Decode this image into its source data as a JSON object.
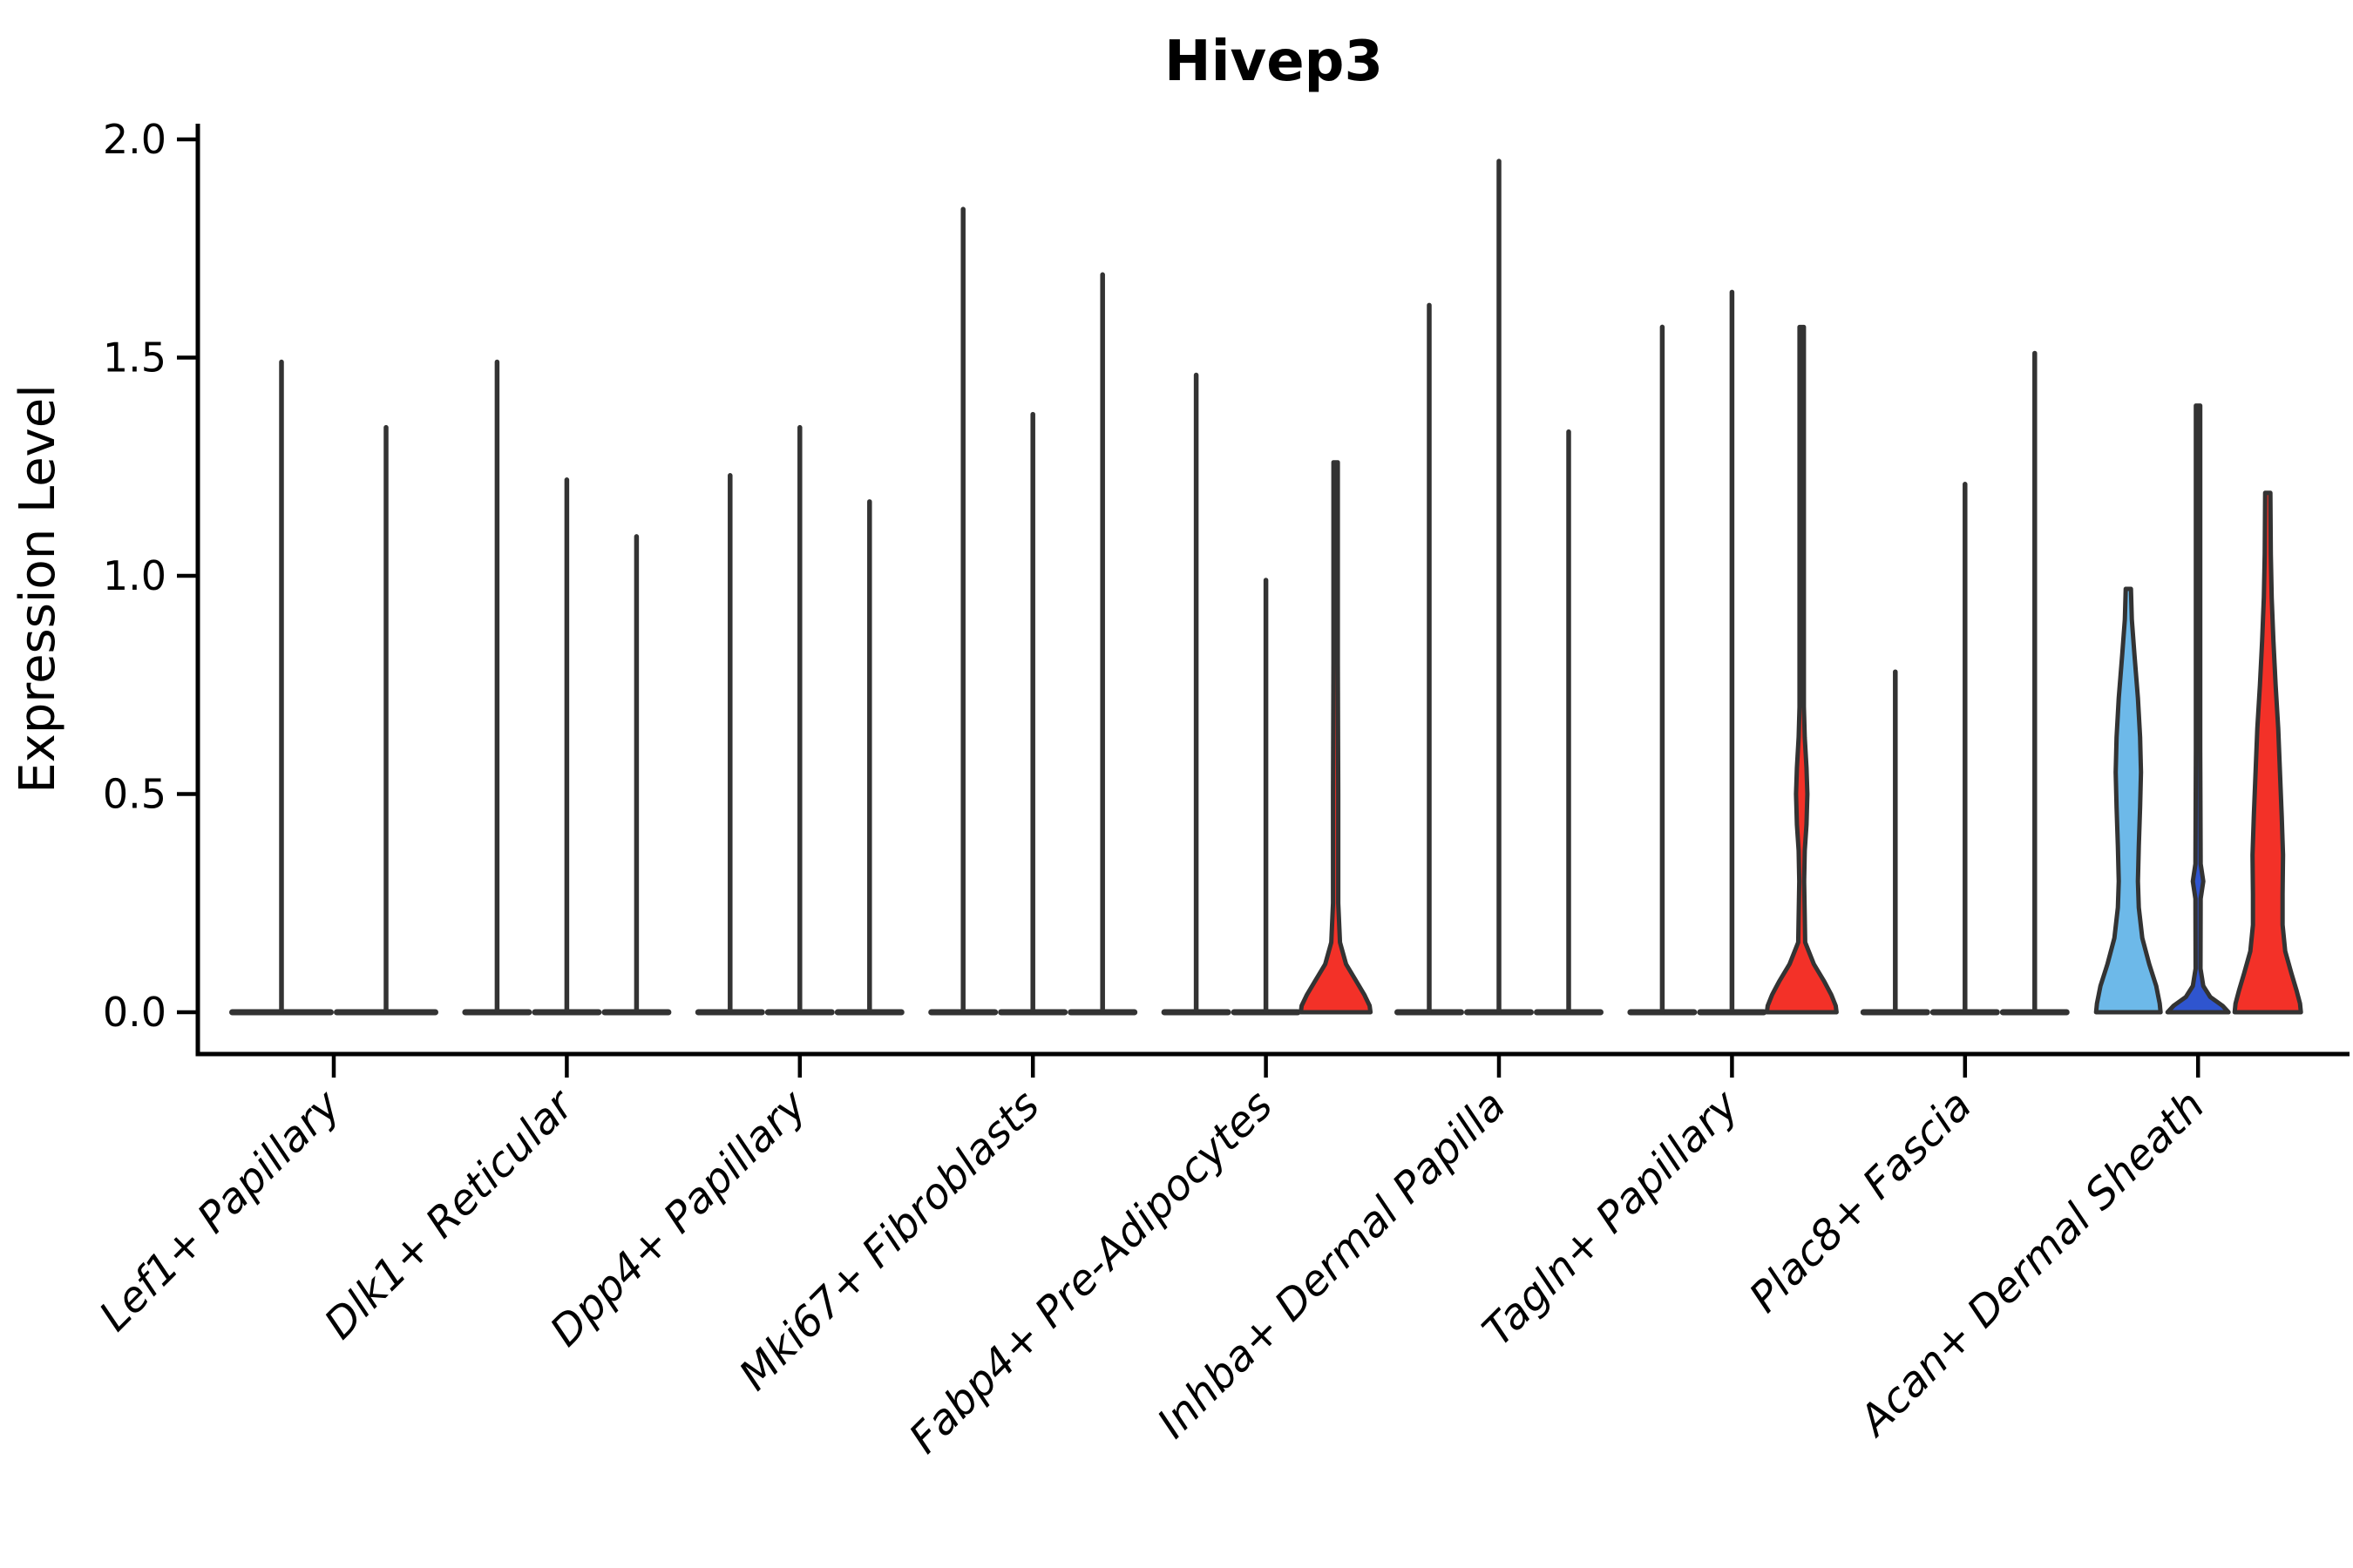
{
  "chart_data": {
    "type": "violin",
    "title": "Hivep3",
    "ylabel": "Expression Level",
    "xlabel": "",
    "ylim": [
      0.0,
      2.0
    ],
    "yticks": [
      0.0,
      0.5,
      1.0,
      1.5,
      2.0
    ],
    "ytick_labels": [
      "0.0",
      "0.5",
      "1.0",
      "1.5",
      "2.0"
    ],
    "grid": false,
    "legend": "none",
    "categories": [
      "Lef1+ Papillary",
      "Dlk1+ Reticular",
      "Dpp4+ Papillary",
      "Mki67+ Fibroblasts",
      "Fabp4+ Pre-Adipocytes",
      "Inhba+ Dermal Papilla",
      "Tagln+ Papillary",
      "Plac8+ Fascia",
      "Acan+ Dermal Sheath"
    ],
    "colors": {
      "spike": "#333333",
      "outline": "#333333",
      "axis": "#000000",
      "red": "#f33128",
      "skyblue": "#6db9e9",
      "blue": "#2f55cf",
      "background": "#ffffff"
    },
    "groups": [
      {
        "category": "Lef1+ Papillary",
        "violins": [
          {
            "max": 1.49,
            "style": "spike"
          },
          {
            "max": 1.34,
            "style": "spike"
          }
        ]
      },
      {
        "category": "Dlk1+ Reticular",
        "violins": [
          {
            "max": 1.49,
            "style": "spike"
          },
          {
            "max": 1.22,
            "style": "spike"
          },
          {
            "max": 1.09,
            "style": "spike"
          }
        ]
      },
      {
        "category": "Dpp4+ Papillary",
        "violins": [
          {
            "max": 1.23,
            "style": "spike"
          },
          {
            "max": 1.34,
            "style": "spike"
          },
          {
            "max": 1.17,
            "style": "spike"
          }
        ]
      },
      {
        "category": "Mki67+ Fibroblasts",
        "violins": [
          {
            "max": 1.84,
            "style": "spike"
          },
          {
            "max": 1.37,
            "style": "spike"
          },
          {
            "max": 1.69,
            "style": "spike"
          }
        ]
      },
      {
        "category": "Fabp4+ Pre-Adipocytes",
        "violins": [
          {
            "max": 1.46,
            "style": "spike"
          },
          {
            "max": 0.99,
            "style": "spike"
          },
          {
            "max": 1.26,
            "style": "shaped",
            "color_key": "red",
            "profile": [
              [
                1.26,
                2.5
              ],
              [
                0.8,
                2.5
              ],
              [
                0.5,
                3.0
              ],
              [
                0.25,
                3.0
              ],
              [
                0.16,
                5.0
              ],
              [
                0.11,
                12.0
              ],
              [
                0.07,
                24.0
              ],
              [
                0.04,
                33.0
              ],
              [
                0.015,
                39.0
              ],
              [
                0.0,
                40.0
              ]
            ]
          }
        ]
      },
      {
        "category": "Inhba+ Dermal Papilla",
        "violins": [
          {
            "max": 1.62,
            "style": "spike"
          },
          {
            "max": 1.95,
            "style": "spike"
          },
          {
            "max": 1.33,
            "style": "spike"
          }
        ]
      },
      {
        "category": "Tagln+ Papillary",
        "violins": [
          {
            "max": 1.57,
            "style": "spike"
          },
          {
            "max": 1.65,
            "style": "spike"
          },
          {
            "max": 1.57,
            "style": "shaped",
            "color_key": "red",
            "profile": [
              [
                1.57,
                2.5
              ],
              [
                0.7,
                2.5
              ],
              [
                0.63,
                3.5
              ],
              [
                0.56,
                5.5
              ],
              [
                0.5,
                6.5
              ],
              [
                0.43,
                5.5
              ],
              [
                0.37,
                3.5
              ],
              [
                0.3,
                2.8
              ],
              [
                0.16,
                4.0
              ],
              [
                0.11,
                14.0
              ],
              [
                0.07,
                26.0
              ],
              [
                0.04,
                34.0
              ],
              [
                0.015,
                39.0
              ],
              [
                0.0,
                40.0
              ]
            ]
          }
        ]
      },
      {
        "category": "Plac8+ Fascia",
        "violins": [
          {
            "max": 0.78,
            "style": "spike"
          },
          {
            "max": 1.21,
            "style": "spike"
          },
          {
            "max": 1.51,
            "style": "spike"
          }
        ]
      },
      {
        "category": "Acan+ Dermal Sheath",
        "violins": [
          {
            "max": 0.97,
            "style": "shaped",
            "color_key": "skyblue",
            "profile": [
              [
                0.97,
                3.0
              ],
              [
                0.9,
                4.0
              ],
              [
                0.82,
                7.0
              ],
              [
                0.72,
                11.0
              ],
              [
                0.63,
                13.5
              ],
              [
                0.55,
                14.5
              ],
              [
                0.47,
                13.5
              ],
              [
                0.38,
                12.0
              ],
              [
                0.3,
                11.0
              ],
              [
                0.24,
                12.0
              ],
              [
                0.17,
                16.0
              ],
              [
                0.11,
                24.0
              ],
              [
                0.06,
                32.0
              ],
              [
                0.02,
                36.0
              ],
              [
                0.0,
                37.0
              ]
            ]
          },
          {
            "max": 1.39,
            "style": "shaped",
            "color_key": "blue",
            "profile": [
              [
                1.39,
                2.5
              ],
              [
                0.6,
                2.5
              ],
              [
                0.34,
                3.0
              ],
              [
                0.3,
                6.0
              ],
              [
                0.26,
                3.0
              ],
              [
                0.1,
                2.8
              ],
              [
                0.06,
                6.0
              ],
              [
                0.035,
                14.0
              ],
              [
                0.015,
                28.0
              ],
              [
                0.0,
                35.0
              ]
            ]
          },
          {
            "max": 1.19,
            "style": "shaped",
            "color_key": "red",
            "profile": [
              [
                1.19,
                3.0
              ],
              [
                1.05,
                3.5
              ],
              [
                0.95,
                4.5
              ],
              [
                0.85,
                6.5
              ],
              [
                0.75,
                9.0
              ],
              [
                0.65,
                12.0
              ],
              [
                0.55,
                14.0
              ],
              [
                0.45,
                16.0
              ],
              [
                0.36,
                17.5
              ],
              [
                0.27,
                17.0
              ],
              [
                0.2,
                17.0
              ],
              [
                0.14,
                20.0
              ],
              [
                0.09,
                27.0
              ],
              [
                0.05,
                33.0
              ],
              [
                0.02,
                37.0
              ],
              [
                0.0,
                38.0
              ]
            ]
          }
        ]
      }
    ]
  }
}
